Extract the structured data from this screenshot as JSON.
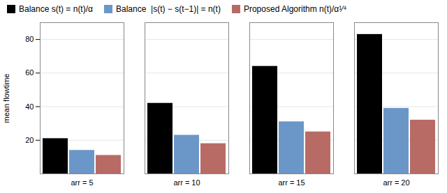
{
  "chart_data": {
    "type": "bar",
    "categories": [
      "arr = 5",
      "arr = 10",
      "arr = 15",
      "arr = 20"
    ],
    "series": [
      {
        "name": "Balance s(t) = n(t)/α",
        "color": "#000000",
        "values": [
          21,
          42,
          64,
          83
        ]
      },
      {
        "name": "Balance  |s(t) − s(t−1)| = n(t)",
        "color": "#6b97c8",
        "values": [
          14,
          23,
          31,
          39
        ]
      },
      {
        "name": "Proposed Algorithm n(t)/α¹⁄⁴",
        "color": "#b86b65",
        "values": [
          11,
          18,
          25,
          32
        ]
      }
    ],
    "ylabel": "mean flowtime",
    "ylim": [
      0,
      90
    ],
    "yticks": [
      20,
      40,
      60,
      80
    ],
    "grid": true,
    "legend": "upper left"
  }
}
